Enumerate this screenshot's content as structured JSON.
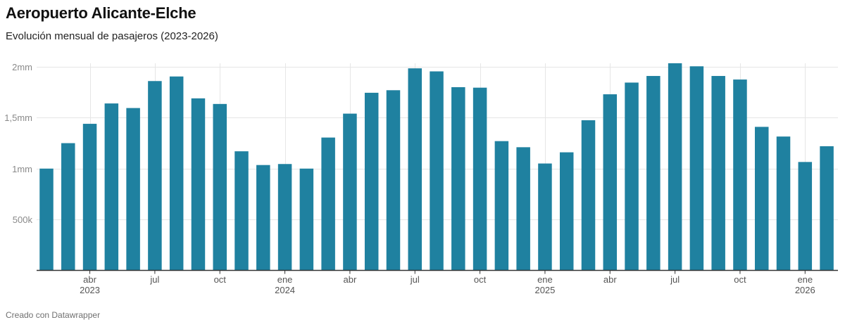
{
  "header": {
    "title": "Aeropuerto Alicante-Elche",
    "subtitle": "Evolución mensual de pasajeros (2023-2026)"
  },
  "footer": {
    "credit": "Creado con Datawrapper"
  },
  "colors": {
    "bar": "#1f81a0",
    "grid": "#e6e6e6",
    "axis": "#333333",
    "tick_text": "#8a8a8a",
    "x_text": "#555555"
  },
  "chart_data": {
    "type": "bar",
    "title": "Aeropuerto Alicante-Elche",
    "subtitle": "Evolución mensual de pasajeros (2023-2026)",
    "xlabel": "",
    "ylabel": "",
    "ylim": [
      0,
      2000000
    ],
    "grid": true,
    "y_ticks": [
      {
        "value": 500000,
        "label": "500k"
      },
      {
        "value": 1000000,
        "label": "1mm"
      },
      {
        "value": 1500000,
        "label": "1,5mm"
      },
      {
        "value": 2000000,
        "label": "2mm"
      }
    ],
    "categories": [
      "2023-02",
      "2023-03",
      "2023-04",
      "2023-05",
      "2023-06",
      "2023-07",
      "2023-08",
      "2023-09",
      "2023-10",
      "2023-11",
      "2023-12",
      "2024-01",
      "2024-02",
      "2024-03",
      "2024-04",
      "2024-05",
      "2024-06",
      "2024-07",
      "2024-08",
      "2024-09",
      "2024-10",
      "2024-11",
      "2024-12",
      "2025-01",
      "2025-02",
      "2025-03",
      "2025-04",
      "2025-05",
      "2025-06",
      "2025-07",
      "2025-08",
      "2025-09",
      "2025-10",
      "2025-11",
      "2025-12",
      "2026-01",
      "2026-02"
    ],
    "values": [
      1000000,
      1250000,
      1440000,
      1640000,
      1595000,
      1860000,
      1905000,
      1690000,
      1635000,
      1170000,
      1035000,
      1045000,
      1000000,
      1305000,
      1540000,
      1745000,
      1770000,
      1985000,
      1955000,
      1800000,
      1795000,
      1270000,
      1210000,
      1050000,
      1160000,
      1475000,
      1730000,
      1845000,
      1910000,
      2035000,
      2005000,
      1910000,
      1875000,
      1410000,
      1315000,
      1065000,
      1220000
    ],
    "x_ticks": [
      {
        "category": "2023-04",
        "label": "abr",
        "year": "2023"
      },
      {
        "category": "2023-07",
        "label": "jul",
        "year": ""
      },
      {
        "category": "2023-10",
        "label": "oct",
        "year": ""
      },
      {
        "category": "2024-01",
        "label": "ene",
        "year": "2024"
      },
      {
        "category": "2024-04",
        "label": "abr",
        "year": ""
      },
      {
        "category": "2024-07",
        "label": "jul",
        "year": ""
      },
      {
        "category": "2024-10",
        "label": "oct",
        "year": ""
      },
      {
        "category": "2025-01",
        "label": "ene",
        "year": "2025"
      },
      {
        "category": "2025-04",
        "label": "abr",
        "year": ""
      },
      {
        "category": "2025-07",
        "label": "jul",
        "year": ""
      },
      {
        "category": "2025-10",
        "label": "oct",
        "year": ""
      },
      {
        "category": "2026-01",
        "label": "ene",
        "year": "2026"
      }
    ]
  }
}
